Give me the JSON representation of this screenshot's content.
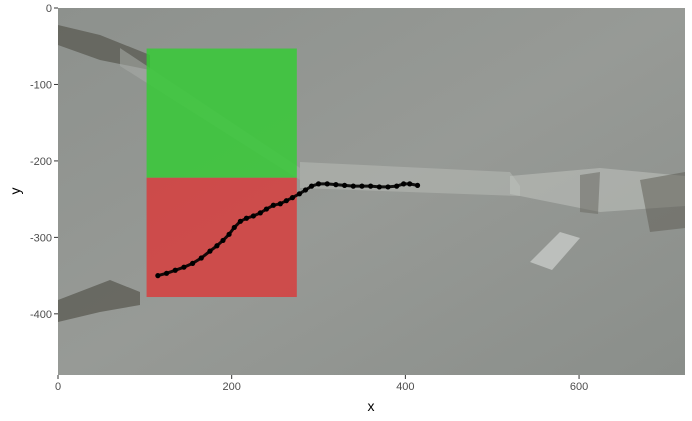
{
  "chart_data": {
    "type": "scatter",
    "title": "",
    "xlabel": "x",
    "ylabel": "y",
    "xlim": [
      0,
      722
    ],
    "ylim": [
      -480,
      0
    ],
    "x_ticks": [
      0,
      200,
      400,
      600
    ],
    "x_tick_labels": [
      "0",
      "200",
      "400",
      "600"
    ],
    "y_ticks": [
      0,
      -100,
      -200,
      -300,
      -400
    ],
    "y_tick_labels": [
      "0",
      "-100",
      "-200",
      "-300",
      "-400"
    ],
    "grid": false,
    "legend": "none",
    "background": "video frame image",
    "regions": [
      {
        "x": [
          102,
          275
        ],
        "y": [
          -222,
          -53
        ],
        "color": "#33cc33"
      },
      {
        "x": [
          102,
          275
        ],
        "y": [
          -378,
          -222
        ],
        "color": "#d93a3a"
      }
    ],
    "series": [
      {
        "color": "#000000",
        "x": [
          115,
          125,
          135,
          145,
          155,
          165,
          175,
          183,
          190,
          197,
          203,
          210,
          217,
          225,
          233,
          240,
          248,
          256,
          263,
          270,
          278,
          285,
          292,
          300,
          310,
          320,
          330,
          340,
          350,
          360,
          370,
          380,
          390,
          398,
          405,
          414
        ],
        "y": [
          -350,
          -347,
          -343,
          -339,
          -334,
          -327,
          -318,
          -311,
          -304,
          -296,
          -287,
          -279,
          -275,
          -272,
          -268,
          -263,
          -258,
          -256,
          -252,
          -248,
          -243,
          -238,
          -233,
          -230,
          -230,
          -231,
          -232,
          -233,
          -233,
          -233,
          -234,
          -234,
          -233,
          -230,
          -230,
          -232
        ]
      }
    ]
  }
}
